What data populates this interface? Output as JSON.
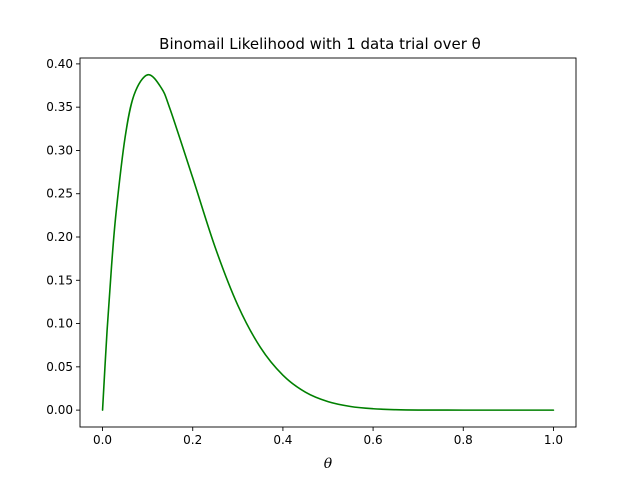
{
  "chart_data": {
    "type": "line",
    "title": "Binomail Likelihood with 1 data trial over θ",
    "xlabel": "θ",
    "ylabel": "",
    "xlim": [
      -0.05,
      1.05
    ],
    "ylim": [
      -0.0195,
      0.4068
    ],
    "x_ticks": [
      "0.0",
      "0.2",
      "0.4",
      "0.6",
      "0.8",
      "1.0"
    ],
    "x_tick_values": [
      0.0,
      0.2,
      0.4,
      0.6,
      0.8,
      1.0
    ],
    "y_ticks": [
      "0.00",
      "0.05",
      "0.10",
      "0.15",
      "0.20",
      "0.25",
      "0.30",
      "0.35",
      "0.40"
    ],
    "y_tick_values": [
      0.0,
      0.05,
      0.1,
      0.15,
      0.2,
      0.25,
      0.3,
      0.35,
      0.4
    ],
    "grid": false,
    "legend": "none",
    "series": [
      {
        "color": "#008000",
        "x": [
          0.0,
          0.01,
          0.02,
          0.03,
          0.05,
          0.07,
          0.1,
          0.13,
          0.15,
          0.2,
          0.25,
          0.3,
          0.35,
          0.4,
          0.45,
          0.5,
          0.55,
          0.6,
          0.65,
          0.7,
          0.8,
          0.9,
          1.0
        ],
        "y": [
          0.0,
          0.0914,
          0.1667,
          0.2281,
          0.3151,
          0.3643,
          0.3874,
          0.3725,
          0.3474,
          0.2684,
          0.1877,
          0.1211,
          0.0725,
          0.0403,
          0.0207,
          0.0098,
          0.0042,
          0.0016,
          0.0005,
          0.0001,
          0.0,
          0.0,
          0.0
        ]
      }
    ]
  }
}
